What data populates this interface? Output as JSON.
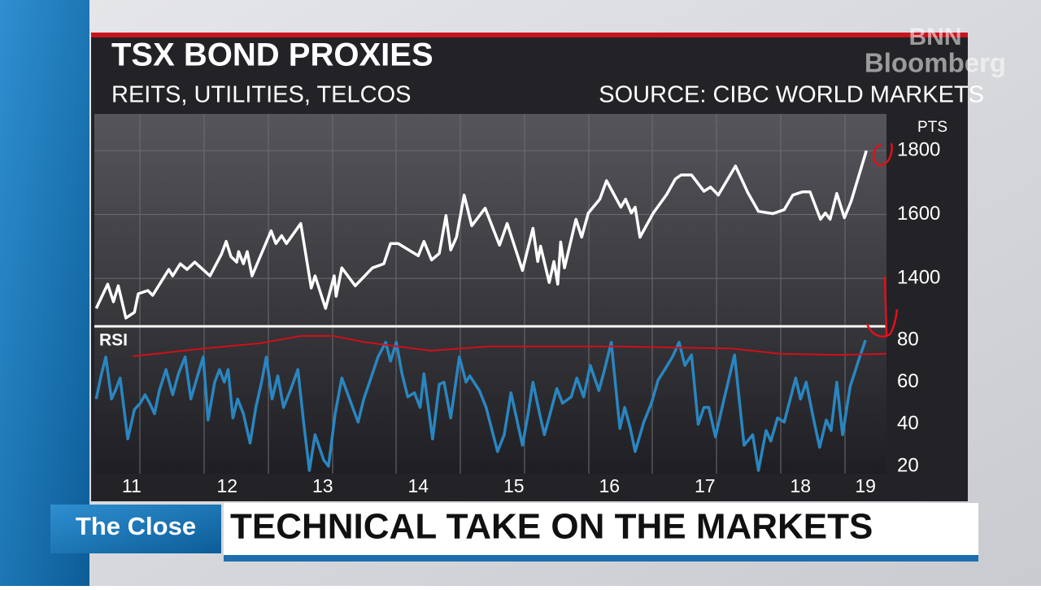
{
  "logo": {
    "line1": "BNN",
    "line2": "Bloomberg"
  },
  "chart_data": [
    {
      "type": "line",
      "title": "TSX BOND PROXIES",
      "subtitle": "REITS, UTILITIES, TELCOS",
      "source": "SOURCE: CIBC WORLD MARKETS",
      "y_label": "PTS",
      "x": [
        10.63,
        10.75,
        10.81,
        10.86,
        10.94,
        11.03,
        11.07,
        11.17,
        11.22,
        11.39,
        11.43,
        11.51,
        11.58,
        11.66,
        11.82,
        11.94,
        11.99,
        12.04,
        12.1,
        12.12,
        12.17,
        12.21,
        12.26,
        12.46,
        12.51,
        12.57,
        12.62,
        12.77,
        12.88,
        12.92,
        13.03,
        13.12,
        13.14,
        13.2,
        13.34,
        13.52,
        13.64,
        13.71,
        13.79,
        14.0,
        14.06,
        14.14,
        14.22,
        14.29,
        14.34,
        14.4,
        14.48,
        14.56,
        14.7,
        14.85,
        14.93,
        15.09,
        15.2,
        15.25,
        15.28,
        15.37,
        15.42,
        15.46,
        15.49,
        15.53,
        15.65,
        15.71,
        15.78,
        15.9,
        15.97,
        16.12,
        16.17,
        16.23,
        16.27,
        16.32,
        16.46,
        16.6,
        16.69,
        16.75,
        16.86,
        16.99,
        17.06,
        17.14,
        17.32,
        17.45,
        17.56,
        17.71,
        17.83,
        17.92,
        18.02,
        18.1,
        18.21,
        18.26,
        18.31,
        18.38,
        18.46,
        18.53,
        18.69
      ],
      "series": [
        {
          "color": "#ffffff",
          "values": [
            1306,
            1382,
            1327,
            1377,
            1276,
            1294,
            1352,
            1362,
            1347,
            1428,
            1408,
            1446,
            1428,
            1451,
            1408,
            1476,
            1516,
            1468,
            1451,
            1484,
            1446,
            1484,
            1408,
            1549,
            1509,
            1534,
            1509,
            1572,
            1370,
            1408,
            1306,
            1408,
            1344,
            1433,
            1377,
            1433,
            1446,
            1509,
            1509,
            1471,
            1516,
            1458,
            1478,
            1597,
            1489,
            1529,
            1661,
            1565,
            1620,
            1504,
            1572,
            1425,
            1557,
            1453,
            1501,
            1387,
            1453,
            1382,
            1514,
            1433,
            1585,
            1529,
            1605,
            1648,
            1706,
            1623,
            1648,
            1605,
            1623,
            1529,
            1605,
            1663,
            1711,
            1724,
            1724,
            1673,
            1686,
            1661,
            1752,
            1668,
            1610,
            1603,
            1615,
            1661,
            1671,
            1671,
            1585,
            1605,
            1585,
            1666,
            1590,
            1641,
            1800
          ]
        }
      ],
      "xlim": [
        10.61,
        18.9
      ],
      "ylim": [
        1250,
        1915
      ],
      "yticks": [
        1400,
        1600,
        1800
      ],
      "grid": true
    },
    {
      "type": "line",
      "y_label": "RSI",
      "series": [
        {
          "color": "#2a86c0",
          "x": [
            10.63,
            10.68,
            10.73,
            10.79,
            10.83,
            10.88,
            10.96,
            11.03,
            11.09,
            11.14,
            11.19,
            11.24,
            11.29,
            11.36,
            11.43,
            11.49,
            11.56,
            11.62,
            11.69,
            11.75,
            11.8,
            11.87,
            11.92,
            11.97,
            12.01,
            12.06,
            12.11,
            12.17,
            12.24,
            12.3,
            12.36,
            12.41,
            12.47,
            12.53,
            12.59,
            12.66,
            12.74,
            12.8,
            12.86,
            12.92,
            13.01,
            13.06,
            13.13,
            13.2,
            13.37,
            13.43,
            13.49,
            13.58,
            13.66,
            13.71,
            13.77,
            13.83,
            13.89,
            13.96,
            14.02,
            14.06,
            14.15,
            14.22,
            14.27,
            14.34,
            14.43,
            14.5,
            14.54,
            14.64,
            14.71,
            14.83,
            14.9,
            14.97,
            15.09,
            15.15,
            15.2,
            15.27,
            15.32,
            15.38,
            15.45,
            15.51,
            15.6,
            15.66,
            15.73,
            15.8,
            15.89,
            15.95,
            16.02,
            16.11,
            16.16,
            16.22,
            16.27,
            16.36,
            16.44,
            16.51,
            16.58,
            16.66,
            16.73,
            16.79,
            16.86,
            16.93,
            16.99,
            17.04,
            17.11,
            17.2,
            17.31,
            17.41,
            17.5,
            17.56,
            17.64,
            17.69,
            17.76,
            17.83,
            17.95,
            18.0,
            18.06,
            18.13,
            18.2,
            18.27,
            18.32,
            18.38,
            18.44,
            18.52,
            18.62,
            18.68
          ],
          "values": [
            52,
            63,
            72,
            52,
            56,
            62,
            33,
            47,
            50,
            54,
            50,
            45,
            56,
            66,
            54,
            64,
            72,
            52,
            63,
            72,
            42,
            60,
            66,
            60,
            66,
            43,
            52,
            45,
            31,
            48,
            60,
            72,
            52,
            63,
            48,
            56,
            66,
            41,
            18,
            35,
            23,
            20,
            45,
            62,
            41,
            52,
            60,
            72,
            79,
            70,
            79,
            64,
            53,
            55,
            48,
            64,
            33,
            59,
            60,
            43,
            72,
            60,
            63,
            56,
            48,
            27,
            35,
            55,
            30,
            45,
            60,
            45,
            35,
            45,
            57,
            50,
            53,
            62,
            53,
            68,
            56,
            66,
            79,
            38,
            48,
            38,
            27,
            41,
            50,
            61,
            66,
            72,
            79,
            68,
            73,
            40,
            48,
            48,
            34,
            52,
            73,
            30,
            35,
            18,
            37,
            32,
            43,
            41,
            62,
            52,
            60,
            44,
            29,
            42,
            37,
            60,
            35,
            58,
            72,
            80
          ]
        },
        {
          "color": "#d0101a",
          "x": [
            11.01,
            11.75,
            12.34,
            12.77,
            13.11,
            13.45,
            14.13,
            14.73,
            16.09,
            17.28,
            17.79,
            18.39,
            18.9
          ],
          "values": [
            72.3,
            76,
            78.5,
            82,
            82,
            79,
            75,
            77,
            77,
            76,
            73.5,
            73,
            73.5
          ]
        }
      ],
      "xlim": [
        10.61,
        18.9
      ],
      "ylim": [
        16.5,
        85.8
      ],
      "yticks": [
        20,
        40,
        60,
        80
      ],
      "xticks": [
        11,
        12,
        13,
        14,
        15,
        16,
        17,
        18,
        {
          "value": 18.68,
          "label": "19"
        }
      ],
      "grid": false
    }
  ],
  "banner": {
    "show": "The Close",
    "headline": "TECHNICAL TAKE ON THE MARKETS"
  }
}
